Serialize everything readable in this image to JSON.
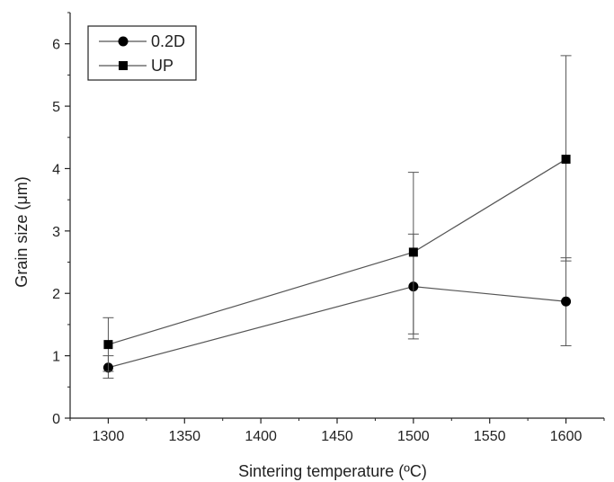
{
  "chart_data": {
    "type": "line",
    "title": "",
    "xlabel": "Sintering temperature (ºC)",
    "ylabel": "Grain size (μm)",
    "xlim": [
      1275,
      1625
    ],
    "ylim": [
      0,
      6.5
    ],
    "x_ticks": [
      "1300",
      "1350",
      "1400",
      "1450",
      "1500",
      "1550",
      "1600"
    ],
    "y_ticks": [
      "0",
      "1",
      "2",
      "3",
      "4",
      "5",
      "6"
    ],
    "grid": false,
    "legend_position": "top-left",
    "series": [
      {
        "name": "0.2D",
        "marker": "circle",
        "x": [
          1300,
          1500,
          1600
        ],
        "y": [
          0.81,
          2.11,
          1.87
        ],
        "err_low": [
          0.64,
          1.27,
          1.16
        ],
        "err_high": [
          1.0,
          2.95,
          2.57
        ]
      },
      {
        "name": "UP",
        "marker": "square",
        "x": [
          1300,
          1500,
          1600
        ],
        "y": [
          1.18,
          2.66,
          4.15
        ],
        "err_low": [
          0.75,
          1.35,
          2.52
        ],
        "err_high": [
          1.61,
          3.94,
          5.81
        ]
      }
    ],
    "colors": {
      "line": "#555555",
      "marker": "#000000",
      "axis": "#222222"
    }
  }
}
